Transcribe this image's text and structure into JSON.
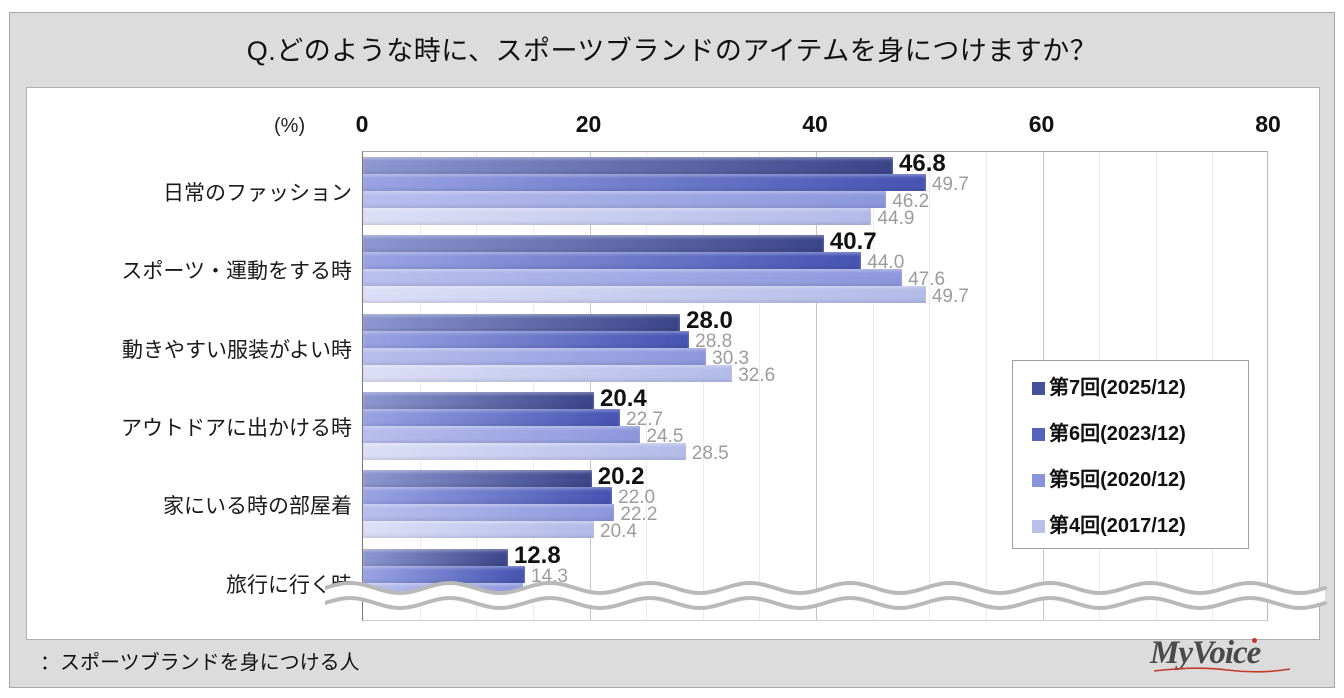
{
  "title": "Q.どのような時に、スポーツブランドのアイテムを身につけますか？",
  "footer": {
    "note": "：スポーツブランドを身につける人",
    "logo": "MyVoice"
  },
  "chart_data": {
    "type": "bar",
    "orientation": "horizontal",
    "unit_label": "(%)",
    "xlim": [
      0,
      80
    ],
    "x_ticks": [
      0,
      20,
      40,
      60,
      80
    ],
    "grid": "minor ticks every 5, major every 20",
    "legend_position": "right-middle",
    "truncated_bottom": true,
    "categories": [
      "日常のファッション",
      "スポーツ・運動をする時",
      "動きやすい服装がよい時",
      "アウトドアに出かける時",
      "家にいる時の部屋着",
      "旅行に行く時"
    ],
    "series": [
      {
        "name": "第7回(2025/12)",
        "color": "#3A4589",
        "color_light": "#8D97D0",
        "legend_color": "#46519B",
        "values": [
          46.8,
          40.7,
          28.0,
          20.4,
          20.2,
          12.8
        ]
      },
      {
        "name": "第6回(2023/12)",
        "color": "#4553B2",
        "color_light": "#9AA4E4",
        "legend_color": "#5463BE",
        "values": [
          49.7,
          44.0,
          28.8,
          22.7,
          22.0,
          14.3
        ]
      },
      {
        "name": "第5回(2020/12)",
        "color": "#8C96DC",
        "color_light": "#B8BFEE",
        "legend_color": "#8A94DA",
        "values": [
          46.2,
          47.6,
          30.3,
          24.5,
          22.2,
          14.1
        ]
      },
      {
        "name": "第4回(2017/12)",
        "color": "#B2BAE8",
        "color_light": "#DCDFF6",
        "legend_color": "#B9C0EC",
        "values": [
          44.9,
          49.7,
          32.6,
          28.5,
          20.4,
          null
        ]
      }
    ]
  }
}
